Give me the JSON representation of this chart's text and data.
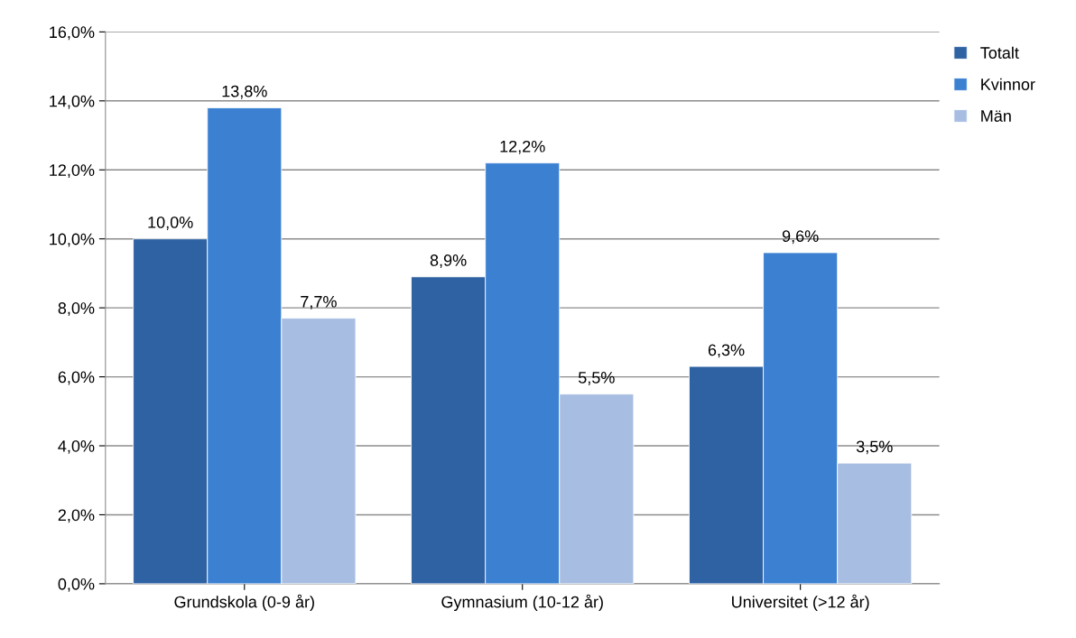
{
  "chart_data": {
    "type": "bar",
    "categories": [
      "Grundskola (0-9 år)",
      "Gymnasium (10-12 år)",
      "Universitet (>12 år)"
    ],
    "series": [
      {
        "name": "Totalt",
        "color": "#2f62a3",
        "values": [
          10.0,
          8.9,
          6.3
        ],
        "value_labels": [
          "10,0%",
          "8,9%",
          "6,3%"
        ]
      },
      {
        "name": "Kvinnor",
        "color": "#3c80d2",
        "values": [
          13.8,
          12.2,
          9.6
        ],
        "value_labels": [
          "13,8%",
          "12,2%",
          "9,6%"
        ]
      },
      {
        "name": "Män",
        "color": "#a8bde2",
        "values": [
          7.7,
          5.5,
          3.5
        ],
        "value_labels": [
          "7,7%",
          "5,5%",
          "3,5%"
        ]
      }
    ],
    "ylim": [
      0,
      16
    ],
    "yticks": [
      {
        "value": 0,
        "label": "0,0%"
      },
      {
        "value": 2,
        "label": "2,0%"
      },
      {
        "value": 4,
        "label": "4,0%"
      },
      {
        "value": 6,
        "label": "6,0%"
      },
      {
        "value": 8,
        "label": "8,0%"
      },
      {
        "value": 10,
        "label": "10,0%"
      },
      {
        "value": 12,
        "label": "12,0%"
      },
      {
        "value": 14,
        "label": "14,0%"
      },
      {
        "value": 16,
        "label": "16,0%"
      }
    ],
    "grid": "y",
    "legend": "top right"
  }
}
